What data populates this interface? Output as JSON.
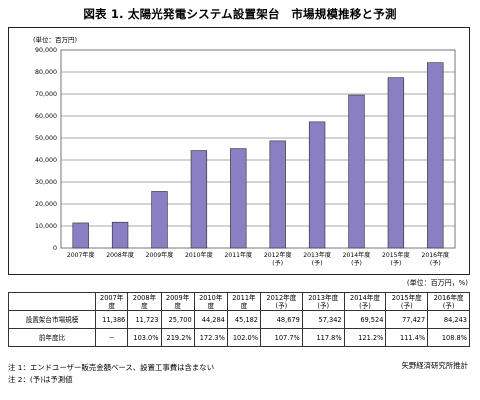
{
  "title": "図表 1. 太陽光発電システム設置架台　市場規模推移と予測",
  "chart_data": {
    "type": "bar",
    "unit_label": "(単位：百万円)",
    "categories": [
      [
        "2007年度",
        ""
      ],
      [
        "2008年度",
        ""
      ],
      [
        "2009年度",
        ""
      ],
      [
        "2010年度",
        ""
      ],
      [
        "2011年度",
        ""
      ],
      [
        "2012年度",
        "(予)"
      ],
      [
        "2013年度",
        "(予)"
      ],
      [
        "2014年度",
        "(予)"
      ],
      [
        "2015年度",
        "(予)"
      ],
      [
        "2016年度",
        "(予)"
      ]
    ],
    "values": [
      11386,
      11723,
      25700,
      44284,
      45182,
      48679,
      57342,
      69524,
      77427,
      84243
    ],
    "ylim": [
      0,
      90000
    ],
    "yticks": [
      "0",
      "10,000",
      "20,000",
      "30,000",
      "40,000",
      "50,000",
      "60,000",
      "70,000",
      "80,000",
      "90,000"
    ],
    "bar_color": "#8b7fc4",
    "grid": true
  },
  "unit_note": "(単位：百万円，%)",
  "table": {
    "headers": [
      "2007年度",
      "2008年度",
      "2009年度",
      "2010年度",
      "2011年度",
      "2012年度 (予)",
      "2013年度 (予)",
      "2014年度 (予)",
      "2015年度 (予)",
      "2016年度 (予)"
    ],
    "rows": [
      {
        "label": "設置架台市場規模",
        "cells": [
          "11,386",
          "11,723",
          "25,700",
          "44,284",
          "45,182",
          "48,679",
          "57,342",
          "69,524",
          "77,427",
          "84,243"
        ]
      },
      {
        "label": "前年度比",
        "cells": [
          "－",
          "103.0%",
          "219.2%",
          "172.3%",
          "102.0%",
          "107.7%",
          "117.8%",
          "121.2%",
          "111.4%",
          "108.8%"
        ]
      }
    ]
  },
  "source": "矢野経済研究所推計",
  "notes": [
    "注 1：エンドユーザー販売金額ベース、設置工事費は含まない",
    "注 2：(予)は予測値"
  ]
}
